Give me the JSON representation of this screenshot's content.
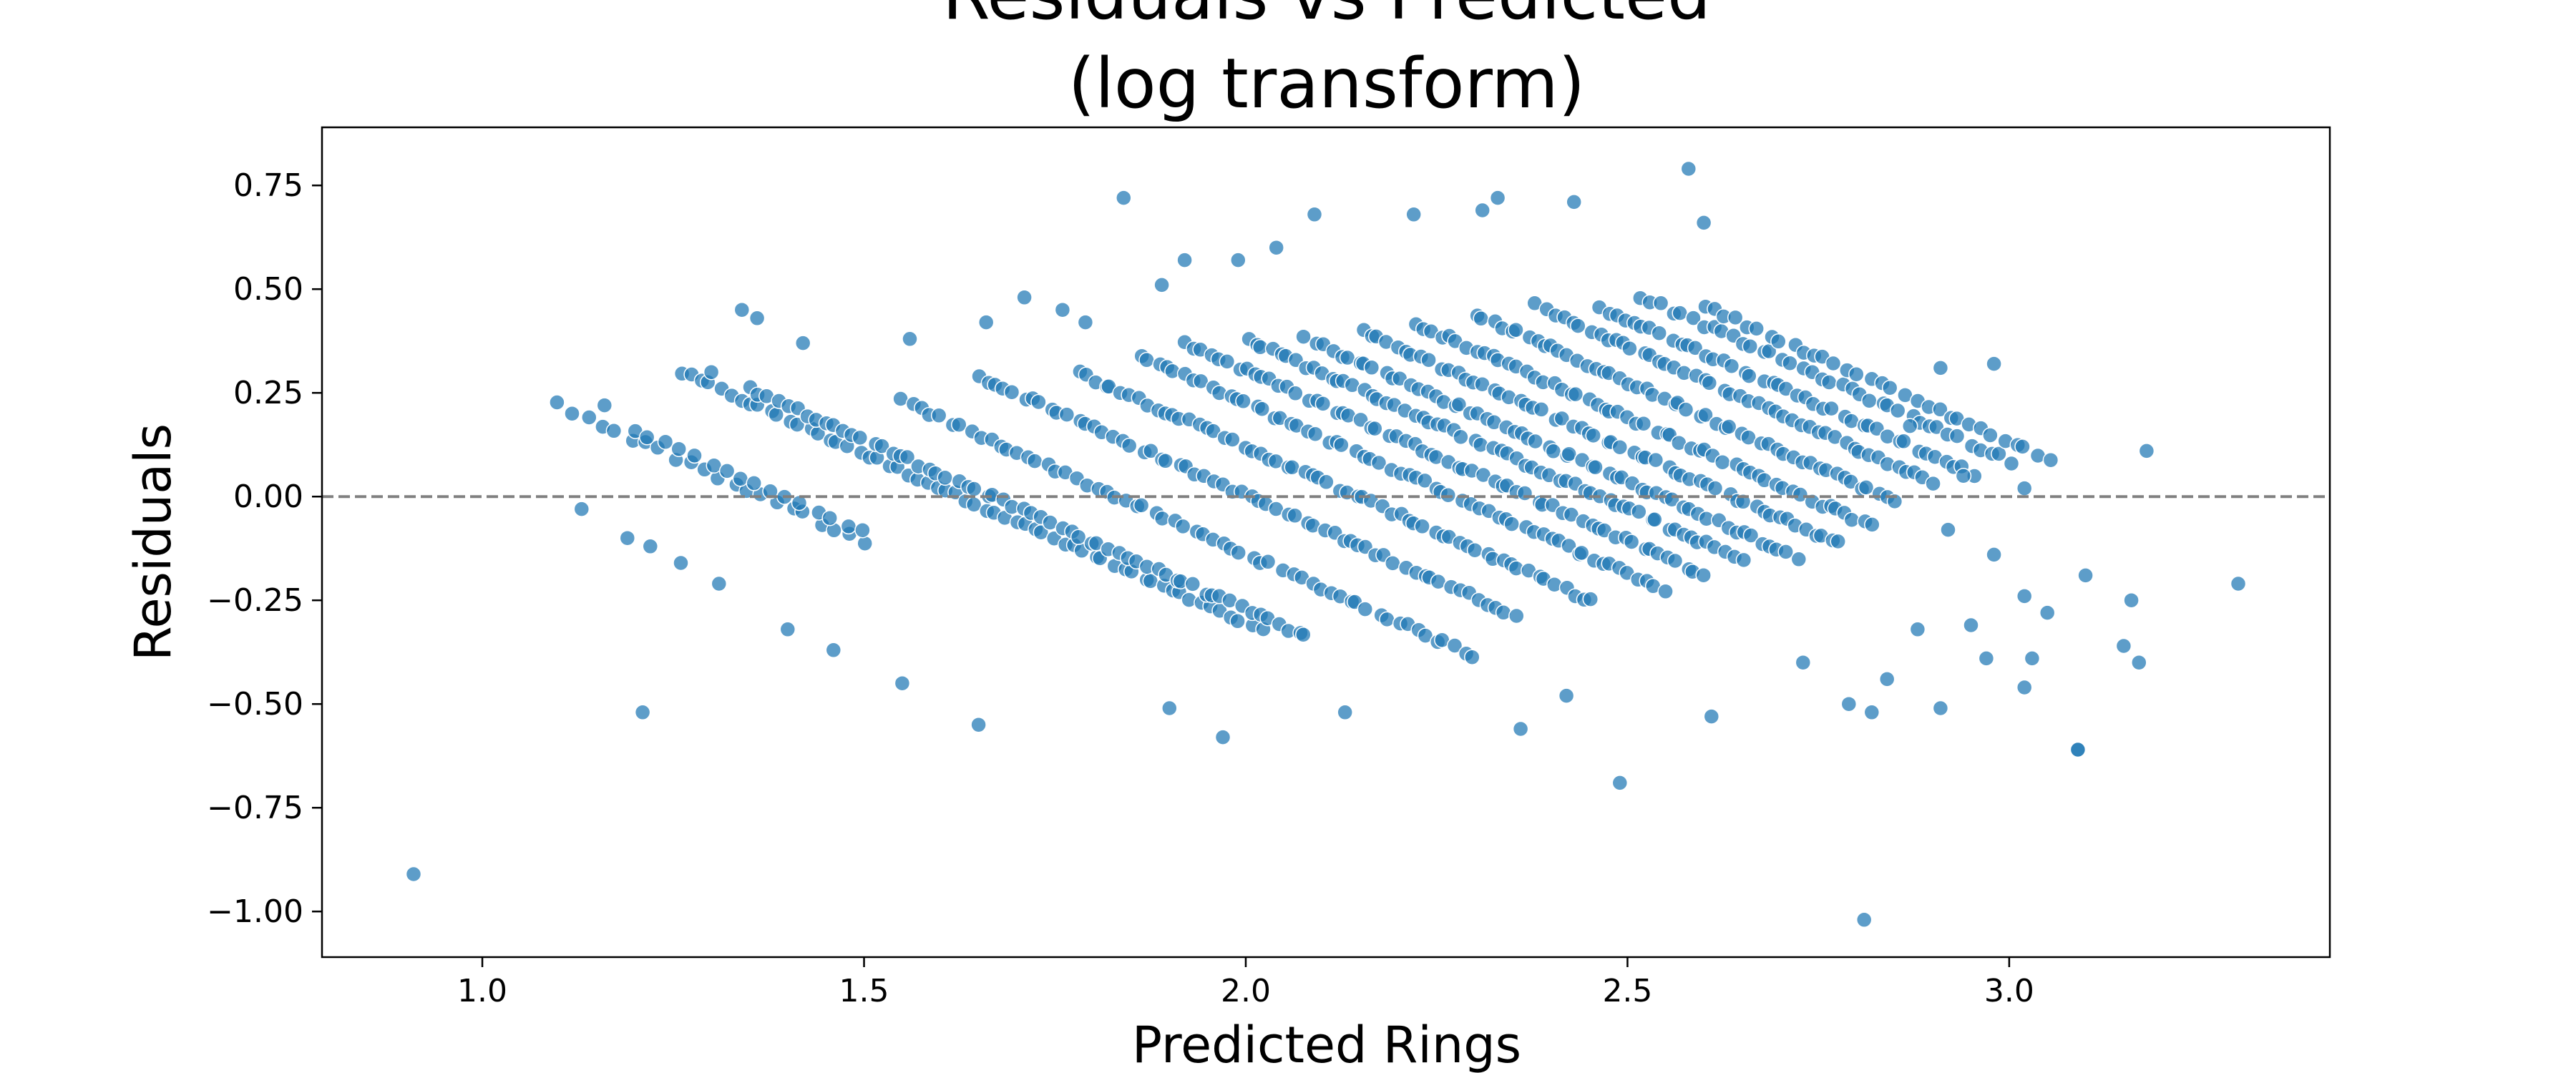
{
  "chart_data": {
    "type": "scatter",
    "title_lines": [
      "Residuals vs Predicted",
      "(log transform)"
    ],
    "xlabel": "Predicted Rings",
    "ylabel": "Residuals",
    "xlim": [
      0.79,
      3.42
    ],
    "ylim": [
      -1.11,
      0.89
    ],
    "x_ticks": [
      1.0,
      1.5,
      2.0,
      2.5,
      3.0
    ],
    "x_tick_labels": [
      "1.0",
      "1.5",
      "2.0",
      "2.5",
      "3.0"
    ],
    "y_ticks": [
      0.75,
      0.5,
      0.25,
      0.0,
      -0.25,
      -0.5,
      -0.75,
      -1.0
    ],
    "y_tick_labels": [
      "0.75",
      "0.50",
      "0.25",
      "0.00",
      "−0.25",
      "−0.50",
      "−0.75",
      "−1.00"
    ],
    "reference_line": {
      "y": 0.0,
      "style": "dashed",
      "color": "#808080"
    },
    "grid": false,
    "legend": "none",
    "colors": {
      "points": "#1f77b4",
      "point_edge": "#ffffff",
      "axes": "#000000"
    },
    "bands": [
      {
        "x_start": 1.26,
        "x_end": 2.02,
        "y_start": 0.3,
        "slope": -0.82,
        "count": 60
      },
      {
        "x_start": 1.35,
        "x_end": 2.08,
        "y_start": 0.26,
        "slope": -0.82,
        "count": 60
      },
      {
        "x_start": 1.55,
        "x_end": 2.3,
        "y_start": 0.23,
        "slope": -0.82,
        "count": 60
      },
      {
        "x_start": 1.65,
        "x_end": 2.35,
        "y_start": 0.29,
        "slope": -0.82,
        "count": 60
      },
      {
        "x_start": 1.78,
        "x_end": 2.45,
        "y_start": 0.3,
        "slope": -0.82,
        "count": 60
      },
      {
        "x_start": 1.86,
        "x_end": 2.55,
        "y_start": 0.34,
        "slope": -0.82,
        "count": 60
      },
      {
        "x_start": 1.92,
        "x_end": 2.6,
        "y_start": 0.37,
        "slope": -0.82,
        "count": 60
      },
      {
        "x_start": 2.0,
        "x_end": 2.65,
        "y_start": 0.38,
        "slope": -0.82,
        "count": 60
      },
      {
        "x_start": 2.08,
        "x_end": 2.72,
        "y_start": 0.38,
        "slope": -0.82,
        "count": 58
      },
      {
        "x_start": 2.15,
        "x_end": 2.78,
        "y_start": 0.4,
        "slope": -0.82,
        "count": 56
      },
      {
        "x_start": 2.22,
        "x_end": 2.82,
        "y_start": 0.42,
        "slope": -0.82,
        "count": 54
      },
      {
        "x_start": 2.3,
        "x_end": 2.85,
        "y_start": 0.44,
        "slope": -0.82,
        "count": 50
      },
      {
        "x_start": 2.38,
        "x_end": 2.9,
        "y_start": 0.46,
        "slope": -0.82,
        "count": 46
      },
      {
        "x_start": 2.46,
        "x_end": 2.95,
        "y_start": 0.46,
        "slope": -0.82,
        "count": 42
      },
      {
        "x_start": 2.52,
        "x_end": 3.0,
        "y_start": 0.48,
        "slope": -0.82,
        "count": 38
      },
      {
        "x_start": 2.6,
        "x_end": 3.05,
        "y_start": 0.46,
        "slope": -0.82,
        "count": 32
      },
      {
        "x_start": 1.1,
        "x_end": 1.5,
        "y_start": 0.22,
        "slope": -0.82,
        "count": 22
      },
      {
        "x_start": 1.2,
        "x_end": 1.5,
        "y_start": 0.16,
        "slope": -0.82,
        "count": 16
      }
    ],
    "extra_points": [
      {
        "x": 0.91,
        "y": -0.91
      },
      {
        "x": 1.13,
        "y": -0.03
      },
      {
        "x": 1.16,
        "y": 0.22
      },
      {
        "x": 1.19,
        "y": -0.1
      },
      {
        "x": 1.21,
        "y": -0.52
      },
      {
        "x": 1.22,
        "y": -0.12
      },
      {
        "x": 1.26,
        "y": -0.16
      },
      {
        "x": 1.3,
        "y": 0.3
      },
      {
        "x": 1.31,
        "y": -0.21
      },
      {
        "x": 1.34,
        "y": 0.45
      },
      {
        "x": 1.36,
        "y": 0.43
      },
      {
        "x": 1.4,
        "y": -0.32
      },
      {
        "x": 1.42,
        "y": 0.37
      },
      {
        "x": 1.46,
        "y": -0.37
      },
      {
        "x": 1.55,
        "y": -0.45
      },
      {
        "x": 1.56,
        "y": 0.38
      },
      {
        "x": 1.65,
        "y": -0.55
      },
      {
        "x": 1.66,
        "y": 0.42
      },
      {
        "x": 1.71,
        "y": 0.48
      },
      {
        "x": 1.76,
        "y": 0.45
      },
      {
        "x": 1.79,
        "y": 0.42
      },
      {
        "x": 1.84,
        "y": 0.72
      },
      {
        "x": 1.89,
        "y": 0.51
      },
      {
        "x": 1.9,
        "y": -0.51
      },
      {
        "x": 1.92,
        "y": 0.57
      },
      {
        "x": 1.97,
        "y": -0.58
      },
      {
        "x": 1.99,
        "y": 0.57
      },
      {
        "x": 2.04,
        "y": 0.6
      },
      {
        "x": 2.09,
        "y": 0.68
      },
      {
        "x": 2.13,
        "y": -0.52
      },
      {
        "x": 2.22,
        "y": 0.68
      },
      {
        "x": 2.31,
        "y": 0.69
      },
      {
        "x": 2.33,
        "y": 0.72
      },
      {
        "x": 2.36,
        "y": -0.56
      },
      {
        "x": 2.42,
        "y": -0.48
      },
      {
        "x": 2.43,
        "y": 0.71
      },
      {
        "x": 2.49,
        "y": -0.69
      },
      {
        "x": 2.58,
        "y": 0.79
      },
      {
        "x": 2.6,
        "y": 0.66
      },
      {
        "x": 2.61,
        "y": -0.53
      },
      {
        "x": 2.73,
        "y": -0.4
      },
      {
        "x": 2.79,
        "y": -0.5
      },
      {
        "x": 2.81,
        "y": -1.02
      },
      {
        "x": 2.82,
        "y": -0.52
      },
      {
        "x": 2.84,
        "y": -0.44
      },
      {
        "x": 2.87,
        "y": 0.17
      },
      {
        "x": 2.88,
        "y": -0.32
      },
      {
        "x": 2.91,
        "y": -0.51
      },
      {
        "x": 2.91,
        "y": 0.31
      },
      {
        "x": 2.92,
        "y": -0.08
      },
      {
        "x": 2.94,
        "y": 0.05
      },
      {
        "x": 2.95,
        "y": -0.31
      },
      {
        "x": 2.97,
        "y": -0.39
      },
      {
        "x": 2.98,
        "y": -0.14
      },
      {
        "x": 2.98,
        "y": 0.32
      },
      {
        "x": 3.02,
        "y": 0.02
      },
      {
        "x": 3.02,
        "y": -0.24
      },
      {
        "x": 3.02,
        "y": -0.46
      },
      {
        "x": 3.03,
        "y": -0.39
      },
      {
        "x": 3.05,
        "y": -0.28
      },
      {
        "x": 3.09,
        "y": -0.61
      },
      {
        "x": 3.09,
        "y": -0.61
      },
      {
        "x": 3.1,
        "y": -0.19
      },
      {
        "x": 3.15,
        "y": -0.36
      },
      {
        "x": 3.16,
        "y": -0.25
      },
      {
        "x": 3.17,
        "y": -0.4
      },
      {
        "x": 3.18,
        "y": 0.11
      },
      {
        "x": 3.3,
        "y": -0.21
      }
    ]
  }
}
